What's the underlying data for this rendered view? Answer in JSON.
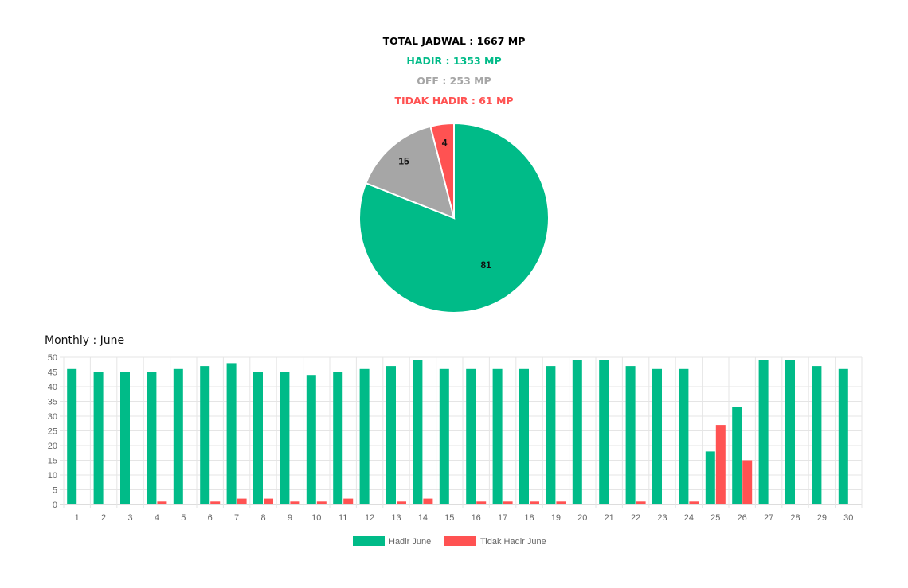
{
  "summary": {
    "total": "TOTAL JADWAL : 1667 MP",
    "hadir": "HADIR : 1353 MP",
    "off": "OFF : 253 MP",
    "tidak_hadir": "TIDAK HADIR : 61 MP"
  },
  "colors": {
    "hadir": "#00bb88",
    "off": "#a6a6a6",
    "tidak_hadir": "#ff5252"
  },
  "monthly_title": "Monthly : June",
  "chart_data": [
    {
      "type": "pie",
      "categories": [
        "Hadir",
        "Off",
        "Tidak Hadir"
      ],
      "values": [
        81,
        15,
        4
      ],
      "labels": [
        "81",
        "15",
        "4"
      ],
      "colors": [
        "#00bb88",
        "#a6a6a6",
        "#ff5252"
      ]
    },
    {
      "type": "bar",
      "categories": [
        "1",
        "2",
        "3",
        "4",
        "5",
        "6",
        "7",
        "8",
        "9",
        "10",
        "11",
        "12",
        "13",
        "14",
        "15",
        "16",
        "17",
        "18",
        "19",
        "20",
        "21",
        "22",
        "23",
        "24",
        "25",
        "26",
        "27",
        "28",
        "29",
        "30"
      ],
      "series": [
        {
          "name": "Hadir June",
          "color": "#00bb88",
          "values": [
            46,
            45,
            45,
            45,
            46,
            47,
            48,
            45,
            45,
            44,
            45,
            46,
            47,
            49,
            46,
            46,
            46,
            46,
            47,
            49,
            49,
            47,
            46,
            46,
            18,
            33,
            49,
            49,
            47,
            46
          ]
        },
        {
          "name": "Tidak Hadir June",
          "color": "#ff5252",
          "values": [
            0,
            0,
            0,
            1,
            0,
            1,
            2,
            2,
            1,
            1,
            2,
            0,
            1,
            2,
            0,
            1,
            1,
            1,
            1,
            0,
            0,
            1,
            0,
            1,
            27,
            15,
            0,
            0,
            0,
            0
          ]
        }
      ],
      "ylim": [
        0,
        50
      ],
      "yticks": [
        0,
        5,
        10,
        15,
        20,
        25,
        30,
        35,
        40,
        45,
        50
      ],
      "grid": true,
      "legend": "bottom"
    }
  ]
}
